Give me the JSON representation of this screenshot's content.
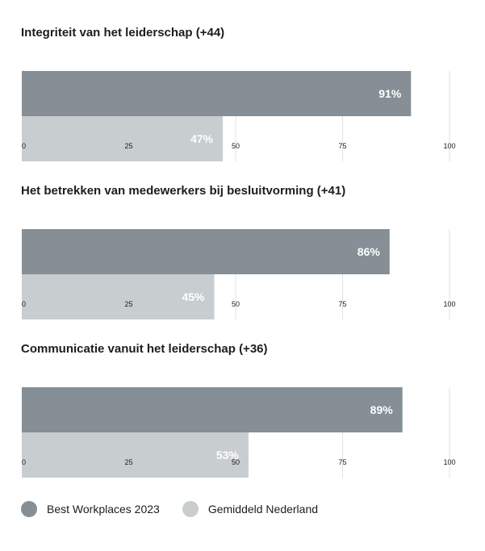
{
  "colors": {
    "best": "#858f95",
    "avg": "#c8cdd0",
    "grid": "#e2e2e2",
    "text": "#1d1d1d",
    "bar_label": "#ffffff"
  },
  "legend": {
    "best_label": "Best Workplaces 2023",
    "avg_label": "Gemiddeld Nederland"
  },
  "chart_data": [
    {
      "type": "bar",
      "orientation": "horizontal",
      "title": "Integriteit van het leiderschap (+44)",
      "series": [
        {
          "name": "Best Workplaces 2023",
          "values": [
            91
          ],
          "labels": [
            "91%"
          ]
        },
        {
          "name": "Gemiddeld Nederland",
          "values": [
            47
          ],
          "labels": [
            "47%"
          ]
        }
      ],
      "xlim": [
        0,
        100
      ],
      "ticks": [
        0,
        25,
        50,
        75,
        100
      ],
      "tick_labels": [
        "0",
        "25",
        "50",
        "75",
        "100"
      ],
      "grid": true
    },
    {
      "type": "bar",
      "orientation": "horizontal",
      "title": "Het betrekken van medewerkers bij besluitvorming (+41)",
      "series": [
        {
          "name": "Best Workplaces 2023",
          "values": [
            86
          ],
          "labels": [
            "86%"
          ]
        },
        {
          "name": "Gemiddeld Nederland",
          "values": [
            45
          ],
          "labels": [
            "45%"
          ]
        }
      ],
      "xlim": [
        0,
        100
      ],
      "ticks": [
        0,
        25,
        50,
        75,
        100
      ],
      "tick_labels": [
        "0",
        "25",
        "50",
        "75",
        "100"
      ],
      "grid": true
    },
    {
      "type": "bar",
      "orientation": "horizontal",
      "title": "Communicatie vanuit het leiderschap (+36)",
      "series": [
        {
          "name": "Best Workplaces 2023",
          "values": [
            89
          ],
          "labels": [
            "89%"
          ]
        },
        {
          "name": "Gemiddeld Nederland",
          "values": [
            53
          ],
          "labels": [
            "53%"
          ]
        }
      ],
      "xlim": [
        0,
        100
      ],
      "ticks": [
        0,
        25,
        50,
        75,
        100
      ],
      "tick_labels": [
        "0",
        "25",
        "50",
        "75",
        "100"
      ],
      "grid": true
    }
  ]
}
